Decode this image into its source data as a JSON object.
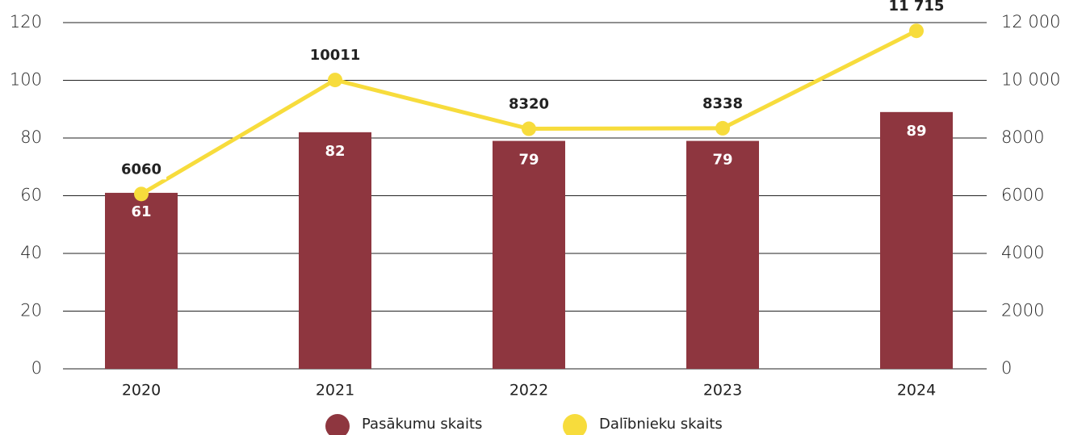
{
  "chart_data": {
    "type": "bar",
    "categories": [
      "2020",
      "2021",
      "2022",
      "2023",
      "2024"
    ],
    "series": [
      {
        "name": "Pasākumu skaits",
        "type": "bar",
        "color": "#8e363f",
        "values": [
          61,
          82,
          79,
          79,
          89
        ]
      },
      {
        "name": "Dalībnieku skaits",
        "type": "line",
        "axis": "y2",
        "color": "#f7dc3c",
        "values": [
          6060,
          10011,
          8320,
          8338,
          11715
        ],
        "value_labels": [
          "6060",
          "10011",
          "8320",
          "8338",
          "11 715"
        ]
      }
    ],
    "ylim": [
      0,
      120
    ],
    "yticks": [
      0,
      20,
      40,
      60,
      80,
      100,
      120
    ],
    "y2lim": [
      0,
      12000
    ],
    "y2ticks": [
      0,
      2000,
      4000,
      6000,
      8000,
      {
        "value": 10000,
        "label": "10 000"
      },
      {
        "value": 12000,
        "label": "12 000"
      }
    ],
    "grid": true,
    "legend": "bottom"
  }
}
